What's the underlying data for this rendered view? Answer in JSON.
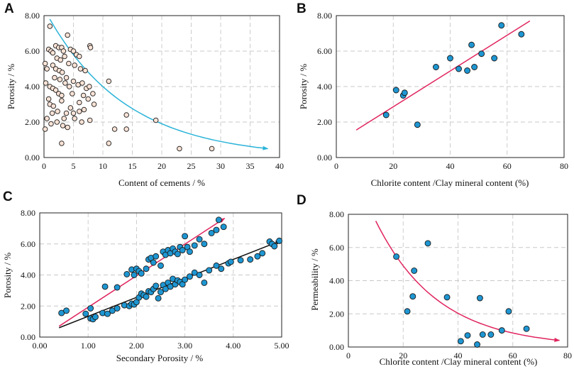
{
  "chart_data": [
    {
      "panel": "A",
      "type": "scatter",
      "xlabel": "Content of cements / %",
      "ylabel": "Porosity / %",
      "xlim": [
        0,
        40
      ],
      "ylim": [
        0,
        8
      ],
      "x_ticks": [
        "0",
        "5",
        "10",
        "15",
        "20",
        "25",
        "30",
        "35",
        "40"
      ],
      "y_ticks": [
        "0.00",
        "2.00",
        "4.00",
        "6.00",
        "8.00"
      ],
      "grid": true,
      "points": [
        [
          1,
          7.4
        ],
        [
          0.2,
          5.3
        ],
        [
          0.5,
          5.0
        ],
        [
          0.8,
          6.1
        ],
        [
          1.2,
          6.0
        ],
        [
          1.5,
          5.9
        ],
        [
          2,
          6.3
        ],
        [
          2.5,
          6.2
        ],
        [
          3,
          6.2
        ],
        [
          3.3,
          6.0
        ],
        [
          2.2,
          5.6
        ],
        [
          2.8,
          5.5
        ],
        [
          3.5,
          5.7
        ],
        [
          1.5,
          5.2
        ],
        [
          2,
          5.0
        ],
        [
          2.6,
          4.9
        ],
        [
          3.1,
          4.8
        ],
        [
          3.8,
          4.5
        ],
        [
          4,
          6.9
        ],
        [
          4.5,
          6.1
        ],
        [
          5,
          6.0
        ],
        [
          5.5,
          5.8
        ],
        [
          6,
          5.7
        ],
        [
          5.2,
          5.2
        ],
        [
          6.2,
          5.0
        ],
        [
          7,
          4.9
        ],
        [
          7.8,
          6.3
        ],
        [
          0.3,
          4.2
        ],
        [
          1,
          4.0
        ],
        [
          1.5,
          3.9
        ],
        [
          2,
          3.8
        ],
        [
          2.5,
          3.6
        ],
        [
          3,
          3.5
        ],
        [
          3.6,
          4.2
        ],
        [
          4.3,
          4.0
        ],
        [
          5,
          4.3
        ],
        [
          5.8,
          4.1
        ],
        [
          6.5,
          4.2
        ],
        [
          7.2,
          3.9
        ],
        [
          7.7,
          4.0
        ],
        [
          8.3,
          3.6
        ],
        [
          1,
          3.0
        ],
        [
          1.6,
          2.9
        ],
        [
          2.3,
          2.6
        ],
        [
          3,
          3.2
        ],
        [
          3.8,
          2.5
        ],
        [
          4.5,
          2.8
        ],
        [
          5,
          2.5
        ],
        [
          6,
          2.6
        ],
        [
          6.8,
          2.7
        ],
        [
          7.5,
          3.3
        ],
        [
          8.5,
          3.0
        ],
        [
          0.5,
          2.2
        ],
        [
          0.2,
          1.6
        ],
        [
          1.2,
          1.9
        ],
        [
          2.2,
          2.0
        ],
        [
          3.2,
          1.8
        ],
        [
          4,
          1.7
        ],
        [
          5.2,
          2.2
        ],
        [
          7.8,
          2.1
        ],
        [
          3,
          0.8
        ],
        [
          11,
          4.3
        ],
        [
          11,
          0.8
        ],
        [
          12,
          1.6
        ],
        [
          14,
          2.4
        ],
        [
          14,
          1.6
        ],
        [
          19,
          2.1
        ],
        [
          23,
          0.5
        ],
        [
          28.5,
          0.5
        ],
        [
          1.8,
          4.5
        ],
        [
          4.8,
          3.6
        ],
        [
          6,
          3.1
        ],
        [
          0.8,
          3.3
        ],
        [
          2.7,
          4.4
        ],
        [
          6.7,
          3.5
        ],
        [
          1.4,
          2.5
        ],
        [
          3.4,
          2.2
        ],
        [
          4.2,
          5.3
        ],
        [
          6.4,
          2.0
        ],
        [
          7.9,
          6.2
        ]
      ],
      "trend": {
        "type": "exponential-arrow",
        "x": [
          1,
          38
        ],
        "y": [
          7.8,
          0.5
        ]
      },
      "point_color": "#fbe3d6",
      "trend_color": "#2ab3d8"
    },
    {
      "panel": "B",
      "type": "scatter",
      "xlabel": "Chlorite content /Clay mineral content (%)",
      "ylabel": "Porosity / %",
      "xlim": [
        0,
        80
      ],
      "ylim": [
        0,
        8
      ],
      "x_ticks": [
        "0",
        "20",
        "40",
        "60",
        "80"
      ],
      "y_ticks": [
        "0.00",
        "2.00",
        "4.00",
        "6.00",
        "8.00"
      ],
      "grid": true,
      "points": [
        [
          17.5,
          2.4
        ],
        [
          21,
          3.8
        ],
        [
          23.5,
          3.5
        ],
        [
          24,
          3.65
        ],
        [
          28.5,
          1.85
        ],
        [
          35,
          5.1
        ],
        [
          40,
          5.6
        ],
        [
          43,
          5.0
        ],
        [
          46,
          4.9
        ],
        [
          47.5,
          6.35
        ],
        [
          48.5,
          5.1
        ],
        [
          51,
          5.85
        ],
        [
          55.5,
          5.6
        ],
        [
          58,
          7.45
        ],
        [
          65,
          6.95
        ]
      ],
      "trend": {
        "type": "linear",
        "x": [
          7,
          68
        ],
        "y": [
          1.55,
          7.7
        ]
      },
      "point_color": "#1e96d2",
      "trend_color": "#e0245e"
    },
    {
      "panel": "C",
      "type": "scatter",
      "xlabel": "Secondary Porosity / %",
      "ylabel": "Porosity / %",
      "xlim": [
        0,
        5
      ],
      "ylim": [
        0,
        8
      ],
      "x_ticks": [
        "0.00",
        "1.00",
        "2.00",
        "3.00",
        "4.00",
        "5.00"
      ],
      "y_ticks": [
        "0.00",
        "2.00",
        "4.00",
        "6.00",
        "8.00"
      ],
      "grid": true,
      "series": [
        {
          "name": "upper",
          "points": [
            [
              1.35,
              3.25
            ],
            [
              1.6,
              3.2
            ],
            [
              1.8,
              4.05
            ],
            [
              1.9,
              4.35
            ],
            [
              1.95,
              4.0
            ],
            [
              2.0,
              4.4
            ],
            [
              2.05,
              4.25
            ],
            [
              2.1,
              4.1
            ],
            [
              2.2,
              4.4
            ],
            [
              2.25,
              5.0
            ],
            [
              2.3,
              5.1
            ],
            [
              2.35,
              4.8
            ],
            [
              2.4,
              5.2
            ],
            [
              2.5,
              4.6
            ],
            [
              2.55,
              5.5
            ],
            [
              2.6,
              5.3
            ],
            [
              2.65,
              5.6
            ],
            [
              2.7,
              5.4
            ],
            [
              2.75,
              5.7
            ],
            [
              2.8,
              5.5
            ],
            [
              2.85,
              5.35
            ],
            [
              2.9,
              5.8
            ],
            [
              2.95,
              5.6
            ],
            [
              3.0,
              6.5
            ],
            [
              3.05,
              5.8
            ],
            [
              3.1,
              5.5
            ],
            [
              3.2,
              5.9
            ],
            [
              3.3,
              6.3
            ],
            [
              3.4,
              6.0
            ],
            [
              3.55,
              6.7
            ],
            [
              3.65,
              6.9
            ],
            [
              3.7,
              7.55
            ],
            [
              3.8,
              7.1
            ]
          ]
        },
        {
          "name": "lower",
          "points": [
            [
              0.45,
              1.55
            ],
            [
              0.55,
              1.7
            ],
            [
              0.95,
              1.5
            ],
            [
              1.05,
              1.2
            ],
            [
              1.1,
              1.15
            ],
            [
              1.15,
              1.3
            ],
            [
              1.05,
              1.85
            ],
            [
              1.3,
              1.55
            ],
            [
              1.4,
              1.5
            ],
            [
              1.5,
              1.7
            ],
            [
              1.6,
              1.85
            ],
            [
              1.75,
              2.05
            ],
            [
              1.85,
              2.0
            ],
            [
              1.9,
              2.15
            ],
            [
              1.95,
              2.1
            ],
            [
              2.0,
              2.25
            ],
            [
              2.05,
              2.55
            ],
            [
              2.1,
              2.8
            ],
            [
              2.15,
              2.7
            ],
            [
              2.2,
              2.6
            ],
            [
              2.25,
              2.95
            ],
            [
              2.3,
              2.9
            ],
            [
              2.35,
              3.1
            ],
            [
              2.4,
              3.3
            ],
            [
              2.45,
              2.5
            ],
            [
              2.5,
              2.9
            ],
            [
              2.55,
              3.35
            ],
            [
              2.6,
              3.1
            ],
            [
              2.65,
              3.5
            ],
            [
              2.7,
              3.25
            ],
            [
              2.75,
              3.75
            ],
            [
              2.8,
              3.4
            ],
            [
              2.85,
              3.65
            ],
            [
              2.9,
              3.55
            ],
            [
              2.95,
              3.4
            ],
            [
              3.0,
              3.7
            ],
            [
              3.1,
              3.9
            ],
            [
              3.2,
              4.15
            ],
            [
              3.3,
              4.0
            ],
            [
              3.4,
              3.5
            ],
            [
              3.5,
              4.3
            ],
            [
              3.65,
              4.6
            ],
            [
              3.75,
              4.4
            ],
            [
              3.9,
              4.75
            ],
            [
              3.95,
              4.85
            ],
            [
              4.15,
              4.95
            ],
            [
              4.35,
              5.0
            ],
            [
              4.5,
              5.2
            ],
            [
              4.6,
              5.4
            ],
            [
              4.75,
              6.15
            ],
            [
              4.8,
              6.0
            ],
            [
              4.85,
              5.85
            ],
            [
              4.95,
              6.2
            ]
          ]
        }
      ],
      "trends": [
        {
          "name": "upper",
          "type": "linear-arrow",
          "x": [
            0.4,
            3.82
          ],
          "y": [
            0.7,
            7.65
          ],
          "color": "#e0245e"
        },
        {
          "name": "lower",
          "type": "linear-arrow",
          "x": [
            0.4,
            4.98
          ],
          "y": [
            0.6,
            6.2
          ],
          "color": "#111111"
        }
      ],
      "point_color": "#1e96d2"
    },
    {
      "panel": "D",
      "type": "scatter",
      "xlabel": "Chlorite content /Clay mineral content (%)",
      "ylabel": "Permeability / %",
      "xlim": [
        0,
        80
      ],
      "ylim": [
        0,
        8
      ],
      "x_ticks": [
        "0",
        "20",
        "40",
        "60",
        "80"
      ],
      "y_ticks": [
        "0.00",
        "2.00",
        "4.00",
        "6.00",
        "8.00"
      ],
      "grid": true,
      "points": [
        [
          17.5,
          5.45
        ],
        [
          21.5,
          2.15
        ],
        [
          23.5,
          3.05
        ],
        [
          24,
          4.6
        ],
        [
          29,
          6.25
        ],
        [
          36,
          3.0
        ],
        [
          41,
          0.35
        ],
        [
          43.5,
          0.7
        ],
        [
          47,
          0.15
        ],
        [
          48,
          2.95
        ],
        [
          49,
          0.75
        ],
        [
          52,
          0.75
        ],
        [
          56,
          1.0
        ],
        [
          58.5,
          2.15
        ],
        [
          65,
          1.1
        ]
      ],
      "trend": {
        "type": "exponential-arrow",
        "x": [
          10,
          77
        ],
        "y": [
          7.6,
          0.4
        ]
      },
      "point_color": "#1e96d2",
      "trend_color": "#e0245e"
    }
  ]
}
